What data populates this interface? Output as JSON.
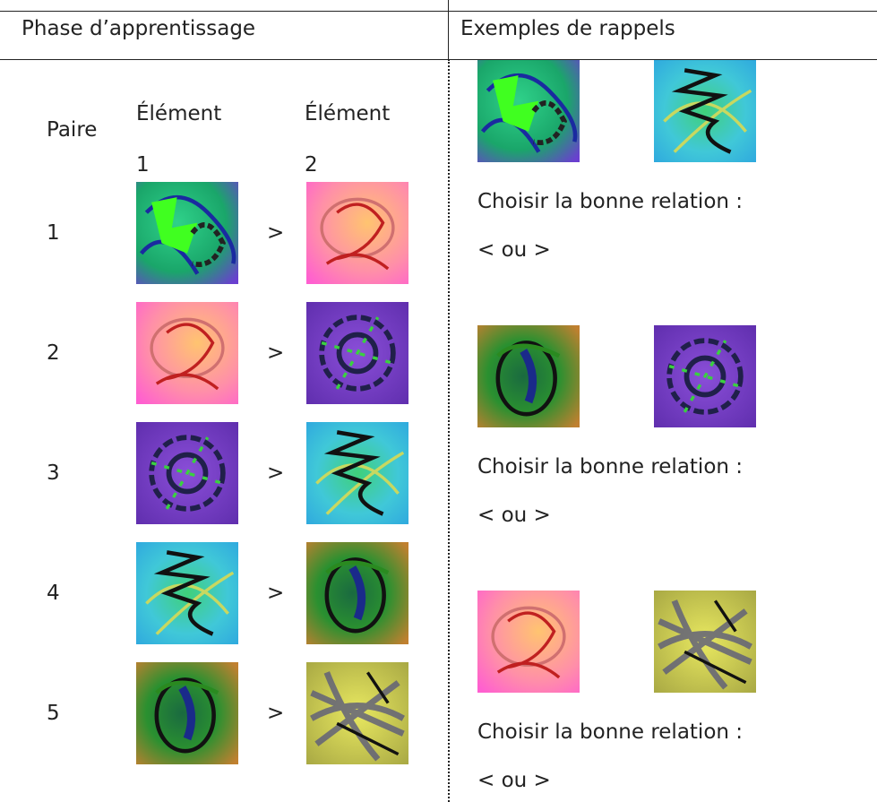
{
  "header": {
    "left": "Phase d’apprentissage",
    "right": "Exemples de rappels"
  },
  "learning": {
    "column_headers": [
      "Paire",
      "Élément 1",
      "Élément 2"
    ],
    "rows": [
      {
        "pair": "1",
        "relation": ">"
      },
      {
        "pair": "2",
        "relation": ">"
      },
      {
        "pair": "3",
        "relation": ">"
      },
      {
        "pair": "4",
        "relation": ">"
      },
      {
        "pair": "5",
        "relation": ">"
      }
    ]
  },
  "recalls": [
    {
      "prompt": "Choisir la bonne relation :",
      "options": "< ou >"
    },
    {
      "prompt": "Choisir la bonne relation :",
      "options": "< ou >"
    },
    {
      "prompt": "Choisir la bonne relation :",
      "options": "< ou >"
    }
  ]
}
